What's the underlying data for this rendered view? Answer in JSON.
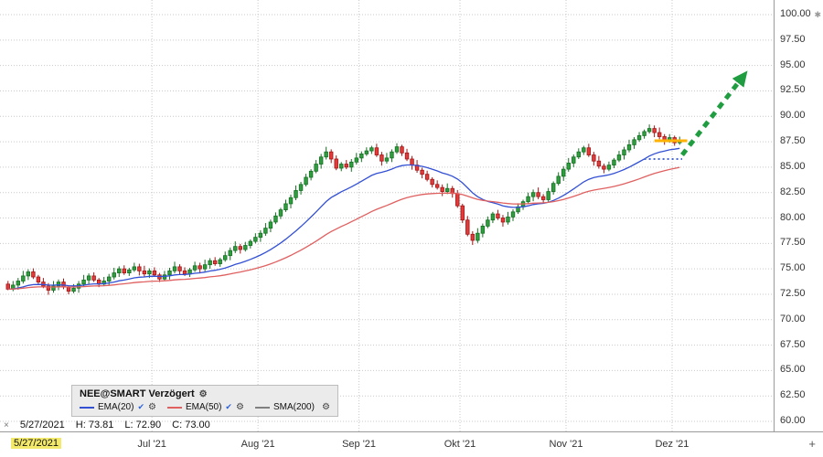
{
  "chart_data": {
    "type": "candlestick",
    "title": "NEE@SMART Verzögert",
    "y_axis": {
      "min": 60,
      "max": 100,
      "step": 2.5,
      "labels": [
        "100.00",
        "97.50",
        "95.00",
        "92.50",
        "90.00",
        "87.50",
        "85.00",
        "82.50",
        "80.00",
        "77.50",
        "75.00",
        "72.50",
        "70.00",
        "67.50",
        "65.00",
        "62.50",
        "60.00"
      ]
    },
    "x_axis": {
      "months": [
        {
          "label": "Jul '21",
          "index": 28.5
        },
        {
          "label": "Aug '21",
          "index": 49.5
        },
        {
          "label": "Sep '21",
          "index": 69.5
        },
        {
          "label": "Okt '21",
          "index": 89.5
        },
        {
          "label": "Nov '21",
          "index": 110.5
        },
        {
          "label": "Dez '21",
          "index": 131.5
        }
      ]
    },
    "colors": {
      "up": "#2f9e3f",
      "up_border": "#156f22",
      "down": "#e23b3b",
      "down_border": "#a31515",
      "grid": "#c9c9c9"
    },
    "indicators": [
      {
        "name": "EMA(20)",
        "type": "ema",
        "period": 20,
        "color": "#3350d4",
        "checked": true
      },
      {
        "name": "EMA(50)",
        "type": "ema",
        "period": 50,
        "color": "#e06060",
        "checked": true
      },
      {
        "name": "SMA(200)",
        "type": "sma",
        "period": 200,
        "color": "#808080",
        "checked": false
      }
    ],
    "overlays": {
      "resistance_marker": {
        "price": 87.6,
        "from_index": 128,
        "to_index": 134.5,
        "color": "#ffb300"
      },
      "support_dots": {
        "price": 85.8,
        "from_index": 126,
        "to_index": 133.5,
        "color": "#4a68d8"
      },
      "trend_arrow": {
        "from": {
          "index": 133.5,
          "price": 86.2
        },
        "to": {
          "index": 146,
          "price": 94.2
        },
        "color": "#1f9d40"
      }
    },
    "candles": [
      [
        73.5,
        73.81,
        72.9,
        73.0
      ],
      [
        73.0,
        73.8,
        72.8,
        73.4
      ],
      [
        73.4,
        74.1,
        72.95,
        73.8
      ],
      [
        73.8,
        74.8,
        73.55,
        74.3
      ],
      [
        74.3,
        74.95,
        73.9,
        74.7
      ],
      [
        74.7,
        75.05,
        74.0,
        74.2
      ],
      [
        74.2,
        74.4,
        73.4,
        73.7
      ],
      [
        73.7,
        74.1,
        73.1,
        73.3
      ],
      [
        73.3,
        73.6,
        72.45,
        72.9
      ],
      [
        72.9,
        73.8,
        72.65,
        73.3
      ],
      [
        73.3,
        73.95,
        72.9,
        73.7
      ],
      [
        73.7,
        74.05,
        73.0,
        73.2
      ],
      [
        73.2,
        73.4,
        72.5,
        72.8
      ],
      [
        72.8,
        73.5,
        72.6,
        73.1
      ],
      [
        73.1,
        73.8,
        72.65,
        73.5
      ],
      [
        73.5,
        74.4,
        73.25,
        73.9
      ],
      [
        73.9,
        74.55,
        73.5,
        74.3
      ],
      [
        74.3,
        74.65,
        73.7,
        73.9
      ],
      [
        73.9,
        74.1,
        73.2,
        73.5
      ],
      [
        73.5,
        74.2,
        73.3,
        73.8
      ],
      [
        73.8,
        74.5,
        73.35,
        74.2
      ],
      [
        74.2,
        75.1,
        73.95,
        74.6
      ],
      [
        74.6,
        75.25,
        74.2,
        75.0
      ],
      [
        75.0,
        75.35,
        74.4,
        74.6
      ],
      [
        74.6,
        75.1,
        74.3,
        74.9
      ],
      [
        74.9,
        75.6,
        74.7,
        75.2
      ],
      [
        75.2,
        75.5,
        74.35,
        74.8
      ],
      [
        74.8,
        75.3,
        74.25,
        74.5
      ],
      [
        74.5,
        75.05,
        74.1,
        74.8
      ],
      [
        74.8,
        75.15,
        74.2,
        74.4
      ],
      [
        74.4,
        74.6,
        73.7,
        74.0
      ],
      [
        74.0,
        74.8,
        73.8,
        74.4
      ],
      [
        74.4,
        75.1,
        73.95,
        74.8
      ],
      [
        74.8,
        75.7,
        74.55,
        75.2
      ],
      [
        75.2,
        75.45,
        74.4,
        74.8
      ],
      [
        74.8,
        75.15,
        74.3,
        74.5
      ],
      [
        74.5,
        75.1,
        74.2,
        74.9
      ],
      [
        74.9,
        75.7,
        74.7,
        75.3
      ],
      [
        75.3,
        75.6,
        74.55,
        75.0
      ],
      [
        75.0,
        75.9,
        74.75,
        75.4
      ],
      [
        75.4,
        76.05,
        75.0,
        75.8
      ],
      [
        75.8,
        76.15,
        75.3,
        75.5
      ],
      [
        75.5,
        76.1,
        75.2,
        75.9
      ],
      [
        75.9,
        76.7,
        75.7,
        76.3
      ],
      [
        76.3,
        77.1,
        75.85,
        76.8
      ],
      [
        76.8,
        77.7,
        76.55,
        77.2
      ],
      [
        77.2,
        77.45,
        76.5,
        76.9
      ],
      [
        76.9,
        77.65,
        76.7,
        77.3
      ],
      [
        77.3,
        77.9,
        77.0,
        77.7
      ],
      [
        77.7,
        78.5,
        77.5,
        78.1
      ],
      [
        78.1,
        78.8,
        77.65,
        78.5
      ],
      [
        78.5,
        79.5,
        78.25,
        79.0
      ],
      [
        79.0,
        79.85,
        78.6,
        79.6
      ],
      [
        79.6,
        80.55,
        79.4,
        80.2
      ],
      [
        80.2,
        81.0,
        79.9,
        80.8
      ],
      [
        80.8,
        81.8,
        80.6,
        81.4
      ],
      [
        81.4,
        82.3,
        80.95,
        82.0
      ],
      [
        82.0,
        83.2,
        81.75,
        82.7
      ],
      [
        82.7,
        83.55,
        82.3,
        83.3
      ],
      [
        83.3,
        84.35,
        83.1,
        84.0
      ],
      [
        84.0,
        84.8,
        83.7,
        84.6
      ],
      [
        84.6,
        85.7,
        84.4,
        85.3
      ],
      [
        85.3,
        86.3,
        84.85,
        86.0
      ],
      [
        86.0,
        87.0,
        85.75,
        86.5
      ],
      [
        86.5,
        86.75,
        85.4,
        85.8
      ],
      [
        85.8,
        86.15,
        84.7,
        84.9
      ],
      [
        84.9,
        85.5,
        84.6,
        85.3
      ],
      [
        85.3,
        85.7,
        84.8,
        85.0
      ],
      [
        85.0,
        85.8,
        84.55,
        85.5
      ],
      [
        85.5,
        86.4,
        85.25,
        85.9
      ],
      [
        85.9,
        86.55,
        85.5,
        86.3
      ],
      [
        86.3,
        86.95,
        86.1,
        86.6
      ],
      [
        86.6,
        87.1,
        86.3,
        86.9
      ],
      [
        86.9,
        87.3,
        86.0,
        86.2
      ],
      [
        86.2,
        86.5,
        85.15,
        85.6
      ],
      [
        85.6,
        86.4,
        85.35,
        85.9
      ],
      [
        85.9,
        86.75,
        85.5,
        86.5
      ],
      [
        86.5,
        87.35,
        86.3,
        87.0
      ],
      [
        87.0,
        87.2,
        86.1,
        86.4
      ],
      [
        86.4,
        86.8,
        85.6,
        85.8
      ],
      [
        85.8,
        86.1,
        84.75,
        85.2
      ],
      [
        85.2,
        85.7,
        84.45,
        84.7
      ],
      [
        84.7,
        84.95,
        83.9,
        84.3
      ],
      [
        84.3,
        84.65,
        83.6,
        83.8
      ],
      [
        83.8,
        84.0,
        83.0,
        83.3
      ],
      [
        83.3,
        83.7,
        82.8,
        83.0
      ],
      [
        83.0,
        83.3,
        82.15,
        82.6
      ],
      [
        82.6,
        83.4,
        82.35,
        82.9
      ],
      [
        82.9,
        83.15,
        82.0,
        82.4
      ],
      [
        82.4,
        82.75,
        81.0,
        81.2
      ],
      [
        81.2,
        81.4,
        79.5,
        79.8
      ],
      [
        79.8,
        80.2,
        78.2,
        78.4
      ],
      [
        78.4,
        78.7,
        77.35,
        77.8
      ],
      [
        77.8,
        79.0,
        77.55,
        78.5
      ],
      [
        78.5,
        79.45,
        78.1,
        79.2
      ],
      [
        79.2,
        80.15,
        79.0,
        79.8
      ],
      [
        79.8,
        80.6,
        79.5,
        80.4
      ],
      [
        80.4,
        80.8,
        79.8,
        80.0
      ],
      [
        80.0,
        80.3,
        79.15,
        79.6
      ],
      [
        79.6,
        80.6,
        79.35,
        80.1
      ],
      [
        80.1,
        80.85,
        79.7,
        80.6
      ],
      [
        80.6,
        81.45,
        80.4,
        81.1
      ],
      [
        81.1,
        81.8,
        80.8,
        81.6
      ],
      [
        81.6,
        82.5,
        81.4,
        82.1
      ],
      [
        82.1,
        82.8,
        81.65,
        82.5
      ],
      [
        82.5,
        83.0,
        81.85,
        82.1
      ],
      [
        82.1,
        82.35,
        81.4,
        81.8
      ],
      [
        81.8,
        82.95,
        81.6,
        82.6
      ],
      [
        82.6,
        83.6,
        82.3,
        83.4
      ],
      [
        83.4,
        84.5,
        83.2,
        84.1
      ],
      [
        84.1,
        85.1,
        83.65,
        84.8
      ],
      [
        84.8,
        85.9,
        84.55,
        85.4
      ],
      [
        85.4,
        86.25,
        85.0,
        86.0
      ],
      [
        86.0,
        86.85,
        85.8,
        86.5
      ],
      [
        86.5,
        87.1,
        86.2,
        86.9
      ],
      [
        86.9,
        87.3,
        86.0,
        86.2
      ],
      [
        86.2,
        86.5,
        85.15,
        85.6
      ],
      [
        85.6,
        86.1,
        84.85,
        85.1
      ],
      [
        85.1,
        85.35,
        84.4,
        84.8
      ],
      [
        84.8,
        85.55,
        84.6,
        85.2
      ],
      [
        85.2,
        85.9,
        84.9,
        85.7
      ],
      [
        85.7,
        86.6,
        85.5,
        86.2
      ],
      [
        86.2,
        87.0,
        85.75,
        86.7
      ],
      [
        86.7,
        87.7,
        86.45,
        87.2
      ],
      [
        87.2,
        87.95,
        86.8,
        87.7
      ],
      [
        87.7,
        88.45,
        87.5,
        88.1
      ],
      [
        88.1,
        88.7,
        87.8,
        88.5
      ],
      [
        88.5,
        89.2,
        88.3,
        88.8
      ],
      [
        88.8,
        89.1,
        87.95,
        88.4
      ],
      [
        88.4,
        88.9,
        87.75,
        88.0
      ],
      [
        88.0,
        88.25,
        87.2,
        87.6
      ],
      [
        87.6,
        88.25,
        87.4,
        87.9
      ],
      [
        87.9,
        88.1,
        87.1,
        87.4
      ],
      [
        87.4,
        88.0,
        87.2,
        87.6
      ]
    ]
  },
  "legend": {
    "gear": "⚙",
    "checks": [
      "✔",
      "✔",
      ""
    ]
  },
  "status": {
    "close_marker": "×",
    "date": "5/27/2021",
    "high": "H: 73.81",
    "low": "L: 72.90",
    "close": "C: 73.00"
  },
  "axes": {
    "selected_date": "5/27/2021",
    "plus_button": "+",
    "asterisk": "✱"
  }
}
